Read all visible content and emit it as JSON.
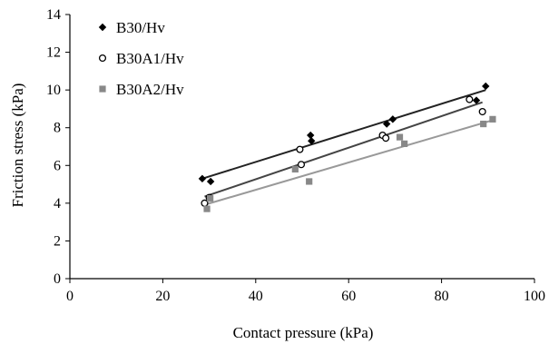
{
  "chart_data": {
    "type": "scatter",
    "xlabel": "Contact pressure (kPa)",
    "ylabel": "Friction stress (kPa)",
    "xlim": [
      0,
      100
    ],
    "ylim": [
      0,
      14
    ],
    "xticks": [
      0,
      20,
      40,
      60,
      80,
      100
    ],
    "yticks": [
      0,
      2,
      4,
      6,
      8,
      10,
      12,
      14
    ],
    "grid": false,
    "legend_position": "top-left",
    "series": [
      {
        "name": "B30/Hv",
        "marker": "diamond-filled",
        "color": "#000000",
        "trend_color": "#222222",
        "points": [
          [
            28.5,
            5.3
          ],
          [
            30.3,
            5.15
          ],
          [
            51.8,
            7.6
          ],
          [
            52.0,
            7.3
          ],
          [
            68.2,
            8.2
          ],
          [
            69.5,
            8.45
          ],
          [
            87.5,
            9.45
          ],
          [
            89.5,
            10.2
          ]
        ],
        "trendline": [
          [
            28.5,
            5.3
          ],
          [
            89.5,
            10.0
          ]
        ]
      },
      {
        "name": "B30A1/Hv",
        "marker": "circle-open",
        "color": "#000000",
        "trend_color": "#444444",
        "points": [
          [
            29.0,
            4.0
          ],
          [
            30.0,
            4.3
          ],
          [
            49.5,
            6.85
          ],
          [
            49.8,
            6.05
          ],
          [
            67.3,
            7.6
          ],
          [
            68.0,
            7.45
          ],
          [
            86.0,
            9.5
          ],
          [
            88.8,
            8.85
          ]
        ],
        "trendline": [
          [
            29.0,
            4.35
          ],
          [
            88.8,
            9.35
          ]
        ]
      },
      {
        "name": "B30A2/Hv",
        "marker": "square-filled",
        "color": "#888888",
        "trend_color": "#999999",
        "points": [
          [
            29.5,
            3.7
          ],
          [
            30.2,
            4.25
          ],
          [
            48.5,
            5.8
          ],
          [
            51.5,
            5.15
          ],
          [
            71.0,
            7.5
          ],
          [
            72.0,
            7.15
          ],
          [
            89.0,
            8.2
          ],
          [
            91.0,
            8.45
          ]
        ],
        "trendline": [
          [
            29.5,
            3.95
          ],
          [
            91.0,
            8.4
          ]
        ]
      }
    ]
  }
}
